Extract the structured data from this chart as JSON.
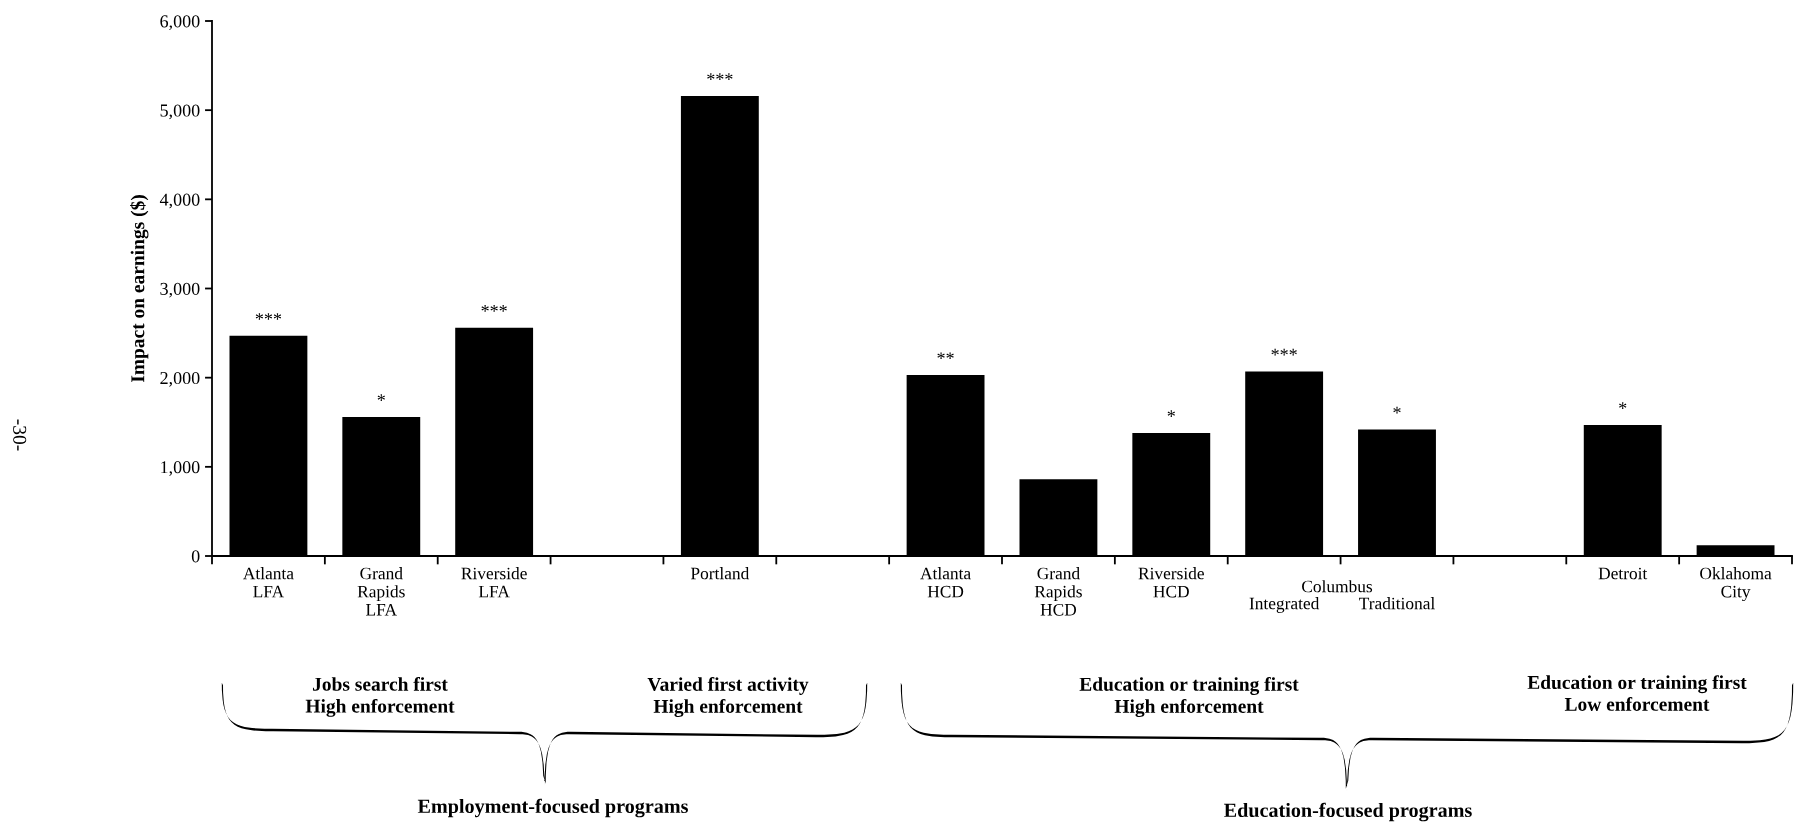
{
  "chart_data": {
    "type": "bar",
    "ylabel": "Impact on earnings ($)",
    "categories": [
      "Atlanta\nLFA",
      "Grand\nRapids\nLFA",
      "Riverside\nLFA",
      null,
      "Portland",
      null,
      "Atlanta\nHCD",
      "Grand\nRapids\nHCD",
      "Riverside\nHCD",
      "Integrated",
      "Traditional",
      null,
      "Detroit",
      "Oklahoma\nCity"
    ],
    "values": [
      2470,
      1560,
      2560,
      null,
      5160,
      null,
      2030,
      860,
      1380,
      2070,
      1420,
      null,
      1470,
      120
    ],
    "value_labels": [
      "***",
      "*",
      "***",
      null,
      "***",
      null,
      "**",
      null,
      "*",
      "***",
      "*",
      null,
      "*",
      null
    ],
    "color": "#000000",
    "ylim": [
      0,
      6000
    ],
    "yticks": [
      {
        "value": 0,
        "label": "0"
      },
      {
        "value": 1000,
        "label": "1,000"
      },
      {
        "value": 2000,
        "label": "2,000"
      },
      {
        "value": 3000,
        "label": "3,000"
      },
      {
        "value": 4000,
        "label": "4,000"
      },
      {
        "value": 5000,
        "label": "5,000"
      },
      {
        "value": 6000,
        "label": "6,000"
      }
    ],
    "grid": false,
    "legend": false,
    "annotations": [
      "Columbus",
      "Jobs search first\nHigh enforcement",
      "Varied first activity\nHigh enforcement",
      "Education or training first\nHigh enforcement",
      "Education or training first\nLow enforcement",
      "Employment-focused programs",
      "Education-focused programs",
      "-30-"
    ]
  }
}
